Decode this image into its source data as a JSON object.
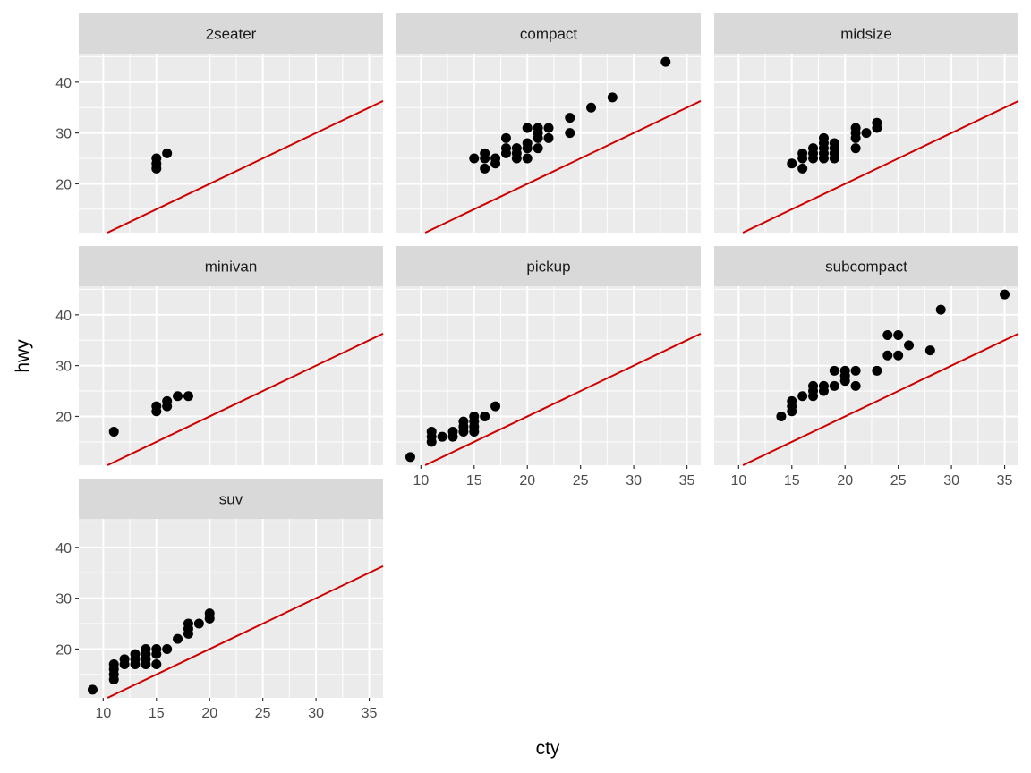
{
  "chart_data": {
    "type": "scatter",
    "xlabel": "cty",
    "ylabel": "hwy",
    "xlim": [
      7.7,
      36.3
    ],
    "ylim": [
      10.4,
      45.6
    ],
    "x_ticks": [
      10,
      15,
      20,
      25,
      30,
      35
    ],
    "y_ticks": [
      20,
      30,
      40
    ],
    "grid": true,
    "reference_line": {
      "type": "abline",
      "slope": 1,
      "intercept": 0,
      "color": "#CD0000"
    },
    "colors": {
      "panel": "#EBEBEB",
      "strip": "#D9D9D9",
      "grid": "#FFFFFF",
      "point": "#000000",
      "line": "#CD0000"
    },
    "facets": [
      {
        "label": "2seater",
        "points": [
          [
            15,
            23
          ],
          [
            15,
            24
          ],
          [
            15,
            25
          ],
          [
            16,
            26
          ]
        ]
      },
      {
        "label": "compact",
        "points": [
          [
            15,
            25
          ],
          [
            16,
            23
          ],
          [
            16,
            25
          ],
          [
            16,
            26
          ],
          [
            17,
            24
          ],
          [
            17,
            25
          ],
          [
            18,
            26
          ],
          [
            18,
            27
          ],
          [
            18,
            29
          ],
          [
            19,
            25
          ],
          [
            19,
            26
          ],
          [
            19,
            27
          ],
          [
            20,
            25
          ],
          [
            20,
            27
          ],
          [
            20,
            28
          ],
          [
            20,
            31
          ],
          [
            21,
            27
          ],
          [
            21,
            29
          ],
          [
            21,
            30
          ],
          [
            21,
            31
          ],
          [
            22,
            29
          ],
          [
            22,
            31
          ],
          [
            24,
            30
          ],
          [
            24,
            33
          ],
          [
            26,
            35
          ],
          [
            28,
            37
          ],
          [
            33,
            44
          ]
        ]
      },
      {
        "label": "midsize",
        "points": [
          [
            15,
            24
          ],
          [
            16,
            23
          ],
          [
            16,
            25
          ],
          [
            16,
            26
          ],
          [
            17,
            25
          ],
          [
            17,
            26
          ],
          [
            17,
            27
          ],
          [
            18,
            25
          ],
          [
            18,
            26
          ],
          [
            18,
            27
          ],
          [
            18,
            28
          ],
          [
            18,
            29
          ],
          [
            19,
            25
          ],
          [
            19,
            26
          ],
          [
            19,
            27
          ],
          [
            19,
            28
          ],
          [
            21,
            27
          ],
          [
            21,
            29
          ],
          [
            21,
            30
          ],
          [
            21,
            31
          ],
          [
            22,
            30
          ],
          [
            23,
            31
          ],
          [
            23,
            32
          ]
        ]
      },
      {
        "label": "minivan",
        "points": [
          [
            11,
            17
          ],
          [
            15,
            21
          ],
          [
            15,
            22
          ],
          [
            16,
            22
          ],
          [
            16,
            23
          ],
          [
            17,
            24
          ],
          [
            18,
            24
          ]
        ]
      },
      {
        "label": "pickup",
        "points": [
          [
            9,
            12
          ],
          [
            11,
            15
          ],
          [
            11,
            16
          ],
          [
            11,
            17
          ],
          [
            12,
            16
          ],
          [
            13,
            16
          ],
          [
            13,
            17
          ],
          [
            14,
            17
          ],
          [
            14,
            18
          ],
          [
            14,
            19
          ],
          [
            15,
            17
          ],
          [
            15,
            18
          ],
          [
            15,
            19
          ],
          [
            15,
            20
          ],
          [
            16,
            20
          ],
          [
            17,
            22
          ]
        ]
      },
      {
        "label": "subcompact",
        "points": [
          [
            14,
            20
          ],
          [
            15,
            21
          ],
          [
            15,
            22
          ],
          [
            15,
            23
          ],
          [
            16,
            24
          ],
          [
            17,
            24
          ],
          [
            17,
            25
          ],
          [
            17,
            26
          ],
          [
            18,
            25
          ],
          [
            18,
            26
          ],
          [
            19,
            26
          ],
          [
            19,
            29
          ],
          [
            20,
            27
          ],
          [
            20,
            28
          ],
          [
            20,
            29
          ],
          [
            21,
            26
          ],
          [
            21,
            29
          ],
          [
            23,
            29
          ],
          [
            24,
            32
          ],
          [
            24,
            36
          ],
          [
            25,
            32
          ],
          [
            25,
            36
          ],
          [
            26,
            34
          ],
          [
            28,
            33
          ],
          [
            29,
            41
          ],
          [
            35,
            44
          ]
        ]
      },
      {
        "label": "suv",
        "points": [
          [
            9,
            12
          ],
          [
            11,
            14
          ],
          [
            11,
            15
          ],
          [
            11,
            16
          ],
          [
            11,
            17
          ],
          [
            12,
            17
          ],
          [
            12,
            18
          ],
          [
            13,
            17
          ],
          [
            13,
            18
          ],
          [
            13,
            19
          ],
          [
            14,
            17
          ],
          [
            14,
            18
          ],
          [
            14,
            19
          ],
          [
            14,
            20
          ],
          [
            15,
            17
          ],
          [
            15,
            19
          ],
          [
            15,
            20
          ],
          [
            16,
            20
          ],
          [
            17,
            22
          ],
          [
            18,
            23
          ],
          [
            18,
            24
          ],
          [
            18,
            25
          ],
          [
            19,
            25
          ],
          [
            20,
            26
          ],
          [
            20,
            27
          ]
        ]
      }
    ]
  }
}
